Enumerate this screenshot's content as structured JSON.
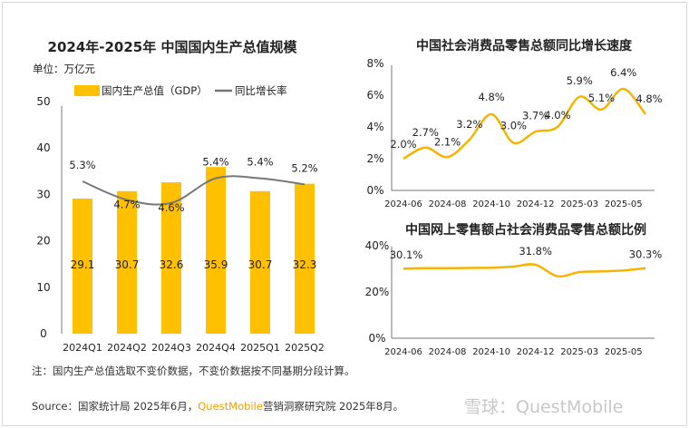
{
  "colors": {
    "bar": "#FFC000",
    "bar_dark": "#F2A800",
    "line_gray": "#777777",
    "line_yellow": "#F5B400",
    "accent": "#F0A000"
  },
  "chart_data": [
    {
      "type": "bar",
      "title": "2024年-2025年 中国国内生产总值规模",
      "unit_label": "单位：万亿元",
      "categories": [
        "2024Q1",
        "2024Q2",
        "2024Q3",
        "2024Q4",
        "2025Q1",
        "2025Q2"
      ],
      "ylim": [
        0,
        50
      ],
      "yticks": [
        "0",
        "10",
        "20",
        "30",
        "40",
        "50"
      ],
      "legend_placement": "top",
      "series": [
        {
          "name": "国内生产总值（GDP）",
          "type": "bar",
          "values": [
            29.1,
            30.7,
            32.6,
            35.9,
            30.7,
            32.3
          ],
          "labels": [
            "29.1",
            "30.7",
            "32.6",
            "35.9",
            "30.7",
            "32.3"
          ]
        },
        {
          "name": "同比增长率",
          "type": "line",
          "values": [
            5.3,
            4.7,
            4.6,
            5.4,
            5.4,
            5.2
          ],
          "labels": [
            "5.3%",
            "4.7%",
            "4.6%",
            "5.4%",
            "5.4%",
            "5.2%"
          ]
        }
      ]
    },
    {
      "type": "line",
      "title": "中国社会消费品零售总额同比增长速度",
      "ylim": [
        0,
        8
      ],
      "yticks": [
        "0%",
        "2%",
        "4%",
        "6%",
        "8%"
      ],
      "xticks": [
        "2024-06",
        "2024-08",
        "2024-10",
        "2024-12",
        "2025-03",
        "2025-05"
      ],
      "values": [
        2.0,
        2.7,
        2.1,
        3.2,
        4.8,
        3.0,
        3.7,
        4.0,
        5.9,
        5.1,
        6.4,
        4.8
      ],
      "labels": [
        "2.0%",
        "2.7%",
        "2.1%",
        "3.2%",
        "4.8%",
        "3.0%",
        "3.7%",
        "4.0%",
        "5.9%",
        "5.1%",
        "6.4%",
        "4.8%"
      ]
    },
    {
      "type": "line",
      "title": "中国网上零售额占社会消费品零售总额比例",
      "ylim": [
        0,
        40
      ],
      "yticks": [
        "0%",
        "20%",
        "40%"
      ],
      "xticks": [
        "2024-06",
        "2024-08",
        "2024-10",
        "2024-12",
        "2025-03",
        "2025-05"
      ],
      "values": [
        30.1,
        30.3,
        30.3,
        30.4,
        30.5,
        31.0,
        31.8,
        26.8,
        28.6,
        28.9,
        29.3,
        30.3
      ],
      "labels": [
        "30.1%",
        "",
        "",
        "",
        "",
        "",
        "31.8%",
        "",
        "",
        "",
        "",
        "30.3%"
      ]
    }
  ],
  "note": "注：国内生产总值选取不变价数据，不变价数据按不同基期分段计算。",
  "source": {
    "prefix": "Source：国家统计局 2025年6月，",
    "brand": "QuestMobile",
    "suffix": "营销洞察研究院 2025年8月。"
  },
  "watermark": "雪球：QuestMobile"
}
